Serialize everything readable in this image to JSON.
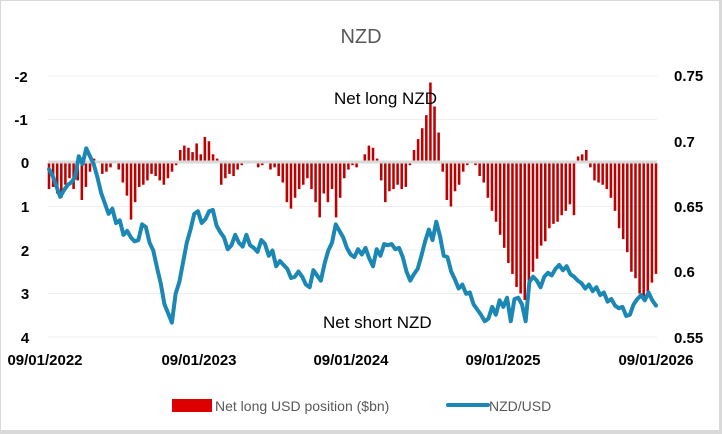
{
  "chart_data": {
    "type": "bar+line",
    "title": "NZD",
    "x_start": "09/01/2022",
    "x_end": "09/01/2026",
    "x_tick_labels": [
      "09/01/2022",
      "09/01/2023",
      "09/01/2024",
      "09/01/2025",
      "09/01/2026"
    ],
    "left_axis": {
      "label": "",
      "ylim": [
        -2,
        4
      ],
      "inverted": true,
      "ticks": [
        "-2",
        "-1",
        "0",
        "1",
        "2",
        "3",
        "4"
      ]
    },
    "right_axis": {
      "label": "",
      "ylim": [
        0.55,
        0.75
      ],
      "ticks": [
        "0.75",
        "0.7",
        "0.65",
        "0.6",
        "0.55"
      ]
    },
    "grid": true,
    "legend_position": "bottom",
    "annotations": [
      "Net long NZD",
      "Net short NZD"
    ],
    "series": [
      {
        "name": "Net long USD position ($bn)",
        "type": "bar",
        "axis": "left",
        "color": "#c00000",
        "values": [
          0.6,
          0.55,
          0.7,
          0.8,
          0.5,
          0.35,
          0.6,
          0.4,
          0.85,
          0.55,
          0.2,
          -0.1,
          0.0,
          0.25,
          0.2,
          0.1,
          0.0,
          0.15,
          0.45,
          0.75,
          1.3,
          0.9,
          0.55,
          0.5,
          0.4,
          0.25,
          0.3,
          0.4,
          0.5,
          0.35,
          0.2,
          0.05,
          -0.3,
          -0.4,
          -0.35,
          -0.25,
          -0.45,
          -0.2,
          -0.6,
          -0.5,
          -0.2,
          -0.1,
          0.5,
          0.35,
          0.25,
          0.3,
          0.15,
          0.05,
          0.0,
          0.0,
          -0.05,
          0.1,
          0.05,
          -0.05,
          0.15,
          0.1,
          0.3,
          0.45,
          0.9,
          1.05,
          0.8,
          0.6,
          0.5,
          0.35,
          0.6,
          0.9,
          1.25,
          0.7,
          0.9,
          0.6,
          1.25,
          0.8,
          0.35,
          0.15,
          0.05,
          0.1,
          -0.05,
          -0.2,
          -0.4,
          -0.35,
          -0.1,
          0.4,
          0.9,
          0.65,
          0.6,
          0.5,
          0.6,
          0.55,
          0.05,
          -0.3,
          -0.55,
          -0.8,
          -1.1,
          -1.85,
          -1.3,
          -0.7,
          0.2,
          0.85,
          1.0,
          0.65,
          0.5,
          0.2,
          0.05,
          -0.05,
          0.05,
          0.3,
          0.45,
          0.8,
          1.1,
          1.35,
          1.65,
          1.95,
          2.3,
          2.55,
          2.85,
          3.0,
          3.15,
          2.7,
          2.5,
          2.2,
          1.9,
          1.8,
          1.5,
          1.4,
          1.35,
          1.2,
          1.1,
          0.95,
          1.2,
          -0.15,
          -0.2,
          -0.3,
          0.1,
          0.4,
          0.45,
          0.5,
          0.6,
          0.8,
          1.1,
          1.5,
          1.75,
          2.05,
          2.5,
          2.65,
          3.0,
          3.1,
          3.0,
          2.75,
          2.55
        ]
      },
      {
        "name": "NZD/USD",
        "type": "line",
        "axis": "right",
        "color": "#1a87b5",
        "values": [
          0.678,
          0.673,
          0.665,
          0.657,
          0.662,
          0.666,
          0.668,
          0.672,
          0.688,
          0.682,
          0.694,
          0.688,
          0.682,
          0.672,
          0.66,
          0.652,
          0.644,
          0.648,
          0.637,
          0.639,
          0.628,
          0.631,
          0.626,
          0.623,
          0.624,
          0.636,
          0.634,
          0.622,
          0.616,
          0.603,
          0.591,
          0.575,
          0.568,
          0.561,
          0.583,
          0.592,
          0.607,
          0.622,
          0.632,
          0.644,
          0.646,
          0.637,
          0.64,
          0.646,
          0.647,
          0.635,
          0.63,
          0.626,
          0.617,
          0.62,
          0.628,
          0.622,
          0.619,
          0.628,
          0.62,
          0.618,
          0.615,
          0.624,
          0.621,
          0.612,
          0.616,
          0.604,
          0.608,
          0.605,
          0.602,
          0.595,
          0.596,
          0.6,
          0.596,
          0.59,
          0.588,
          0.601,
          0.597,
          0.593,
          0.606,
          0.616,
          0.622,
          0.636,
          0.631,
          0.626,
          0.618,
          0.613,
          0.611,
          0.617,
          0.613,
          0.618,
          0.61,
          0.604,
          0.617,
          0.612,
          0.621,
          0.62,
          0.621,
          0.617,
          0.618,
          0.611,
          0.6,
          0.593,
          0.598,
          0.602,
          0.612,
          0.623,
          0.632,
          0.624,
          0.638,
          0.627,
          0.612,
          0.611,
          0.6,
          0.594,
          0.587,
          0.59,
          0.583,
          0.584,
          0.575,
          0.571,
          0.567,
          0.562,
          0.564,
          0.573,
          0.567,
          0.578,
          0.573,
          0.58,
          0.562,
          0.579,
          0.58,
          0.575,
          0.562,
          0.592,
          0.596,
          0.593,
          0.588,
          0.596,
          0.599,
          0.597,
          0.602,
          0.605,
          0.601,
          0.604,
          0.598,
          0.596,
          0.593,
          0.591,
          0.587,
          0.59,
          0.585,
          0.588,
          0.582,
          0.584,
          0.577,
          0.579,
          0.574,
          0.572,
          0.573,
          0.566,
          0.567,
          0.575,
          0.579,
          0.582,
          0.578,
          0.584,
          0.578,
          0.574
        ]
      }
    ]
  },
  "legend": {
    "bar_label": "Net long USD position ($bn)",
    "line_label": "NZD/USD"
  },
  "annotations": {
    "top": "Net long NZD",
    "bottom": "Net short NZD"
  },
  "title": "NZD"
}
